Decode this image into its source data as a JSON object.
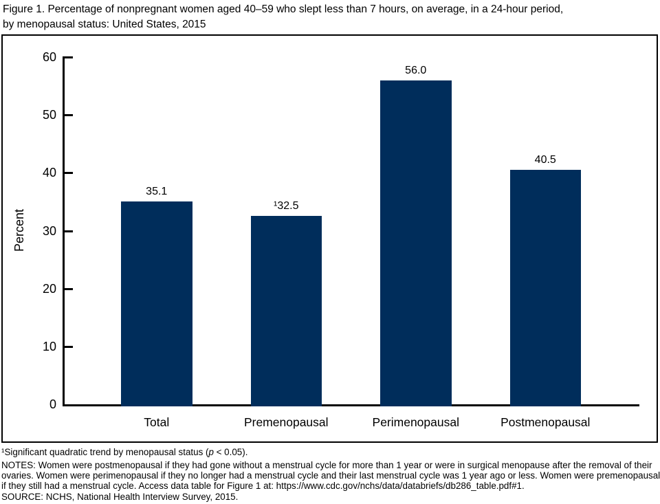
{
  "figure": {
    "title_lines": [
      "Figure 1. Percentage of nonpregnant women aged 40–59 who slept less than 7 hours, on average, in a 24-hour period,",
      "by menopausal status: United States, 2015"
    ]
  },
  "chart_data": {
    "type": "bar",
    "title": "Figure 1. Percentage of nonpregnant women aged 40–59 who slept less than 7 hours, on average, in a 24-hour period, by menopausal status: United States, 2015",
    "categories": [
      "Total",
      "Premenopausal",
      "Perimenopausal",
      "Postmenopausal"
    ],
    "values": [
      35.1,
      32.5,
      56.0,
      40.5
    ],
    "value_labels": [
      "35.1",
      "¹32.5",
      "56.0",
      "40.5"
    ],
    "xlabel": "",
    "ylabel": "Percent",
    "ylim": [
      0,
      60
    ],
    "yticks": [
      0,
      10,
      20,
      30,
      40,
      50,
      60
    ],
    "grid": false,
    "legend": "none",
    "bar_color": "#002d5b",
    "axis_color": "#000000"
  },
  "footnotes": {
    "significance": {
      "before": "¹Significant quadratic trend by menopausal status (",
      "italic": "p",
      "after": " < 0.05)."
    },
    "notes_lines": [
      "NOTES: Women were postmenopausal if they had gone without a menstrual cycle for more than 1 year or were in surgical menopause after the removal of their",
      "ovaries. Women were perimenopausal if they no longer had a menstrual cycle and their last menstrual cycle was 1 year ago or less. Women were premenopausal",
      "if they still had a menstrual cycle. Access data table for Figure 1 at: https://www.cdc.gov/nchs/data/databriefs/db286_table.pdf#1."
    ],
    "source": "SOURCE: NCHS, National Health Interview Survey, 2015."
  }
}
